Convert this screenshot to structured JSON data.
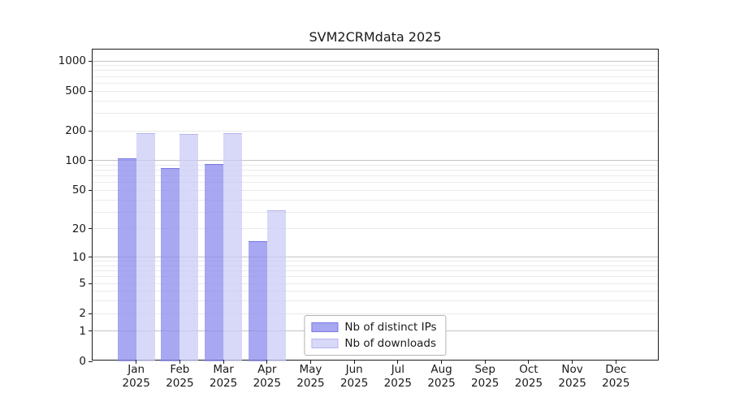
{
  "chart_data": {
    "type": "bar",
    "title": "SVM2CRMdata 2025",
    "months": [
      "Jan",
      "Feb",
      "Mar",
      "Apr",
      "May",
      "Jun",
      "Jul",
      "Aug",
      "Sep",
      "Oct",
      "Nov",
      "Dec"
    ],
    "year": "2025",
    "series": [
      {
        "name": "Nb of distinct IPs",
        "color": "rgba(138,138,238,0.75)",
        "edge": "rgba(112,112,228,0.85)",
        "values": [
          106,
          84,
          93,
          15,
          0,
          0,
          0,
          0,
          0,
          0,
          0,
          0
        ]
      },
      {
        "name": "Nb of downloads",
        "color": "rgba(203,203,246,0.75)",
        "edge": "rgba(176,176,238,0.85)",
        "values": [
          190,
          187,
          189,
          31,
          0,
          0,
          0,
          0,
          0,
          0,
          0,
          0
        ]
      }
    ],
    "y_scale": "log1p",
    "y_ticks": [
      0,
      1,
      2,
      5,
      10,
      20,
      50,
      100,
      200,
      500,
      1000
    ],
    "ylim": [
      0,
      1300
    ],
    "grid": {
      "axis": "y",
      "major": [
        1,
        10,
        100,
        1000
      ],
      "minor_base": [
        2,
        3,
        4,
        5,
        6,
        7,
        8,
        9
      ],
      "minor_decades": [
        1,
        10,
        100
      ]
    },
    "legend_position": "lower center"
  },
  "colors": {
    "background": "#ffffff",
    "text": "#1a1a1a",
    "spine": "#1c1c1c",
    "grid_major": "#c4c4c4",
    "grid_minor": "#eaeaea",
    "legend_border": "#b3b3b3"
  }
}
